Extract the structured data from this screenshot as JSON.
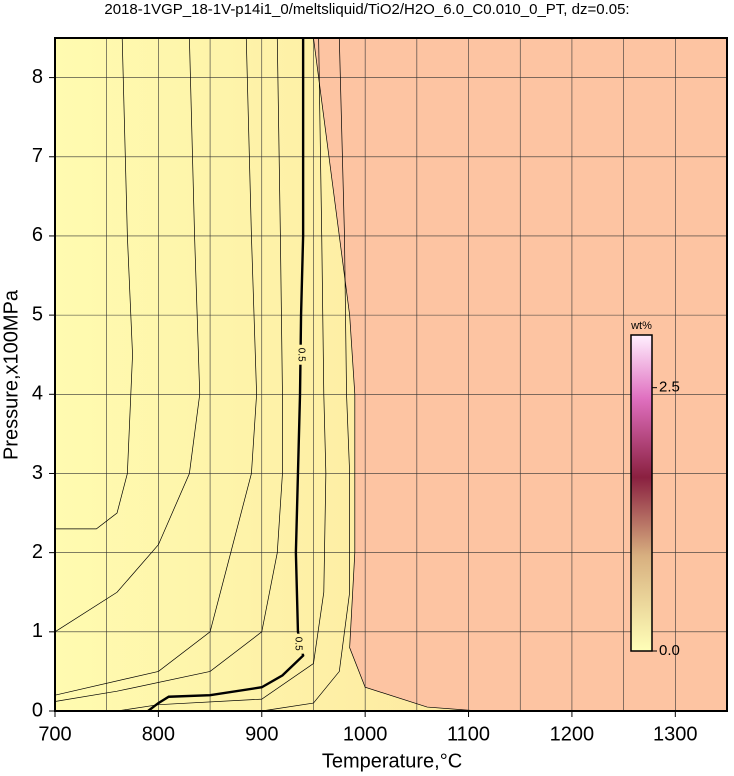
{
  "chart_data": {
    "type": "contour",
    "title": "2018-1VGP_18-1V-p14i1_0/meltsliquid/TiO2/H2O_6.0_C0.010_0_PT, dz=0.05:",
    "xlabel": "Temperature,°C",
    "ylabel": "Pressure,x100MPa",
    "xlim": [
      700,
      1350
    ],
    "ylim": [
      0,
      8.5
    ],
    "xticks": [
      700,
      800,
      900,
      1000,
      1100,
      1200,
      1300
    ],
    "x_minor_grid": [
      750,
      850,
      950,
      1050,
      1150,
      1250,
      1350
    ],
    "yticks": [
      0,
      1,
      2,
      3,
      4,
      5,
      6,
      7,
      8
    ],
    "grid": true,
    "region_colors": [
      "#fff6a8",
      "#fdc4a2"
    ],
    "contours": [
      {
        "x": [
          765,
          770,
          775,
          770,
          760,
          740,
          700
        ],
        "y": [
          8.5,
          6,
          4.5,
          3,
          2.5,
          2.3,
          2.3
        ]
      },
      {
        "x": [
          830,
          835,
          840,
          830,
          800,
          760,
          700
        ],
        "y": [
          8.5,
          6,
          4,
          3,
          2.1,
          1.5,
          1.0
        ]
      },
      {
        "x": [
          885,
          890,
          895,
          890,
          870,
          850,
          800,
          700
        ],
        "y": [
          8.5,
          6,
          4,
          3,
          2,
          1,
          0.5,
          0.2
        ]
      },
      {
        "x": [
          915,
          918,
          920,
          920,
          915,
          900,
          850,
          760,
          700
        ],
        "y": [
          8.5,
          6,
          4,
          3,
          2,
          1,
          0.5,
          0.25,
          0.12
        ]
      },
      {
        "level": 0.5,
        "x": [
          940,
          940,
          940,
          938,
          937,
          935,
          933,
          935,
          940,
          920,
          900,
          850,
          810,
          800,
          790
        ],
        "y": [
          8.5,
          7,
          6,
          5,
          4,
          3,
          2,
          1.0,
          0.7,
          0.45,
          0.3,
          0.2,
          0.18,
          0.1,
          0
        ]
      },
      {
        "x": [
          955,
          958,
          960,
          962,
          960,
          950,
          900,
          800,
          760
        ],
        "y": [
          8.5,
          6,
          4,
          3,
          1.5,
          0.6,
          0.15,
          0.08,
          0
        ]
      },
      {
        "x": [
          975,
          980,
          982,
          985,
          985,
          975,
          950,
          900
        ],
        "y": [
          8.5,
          6,
          4,
          3,
          1.5,
          0.5,
          0.1,
          0
        ]
      },
      {
        "x": [
          950,
          965,
          985,
          990,
          990,
          985,
          1000,
          1060,
          1110
        ],
        "y": [
          8.5,
          7,
          5,
          4,
          2,
          0.8,
          0.3,
          0.05,
          0
        ]
      }
    ],
    "colorbar": {
      "label": "wt%",
      "lim": [
        0,
        3.0
      ],
      "ticks": [
        {
          "value": 0,
          "label": "0.0"
        },
        2.5
      ]
    }
  }
}
